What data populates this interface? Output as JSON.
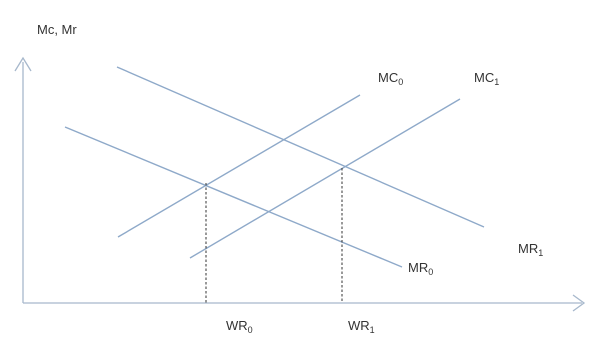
{
  "diagram": {
    "axes": {
      "y_label": "Mc, Mr"
    },
    "curves": [
      {
        "id": "mc0",
        "label": "MC",
        "subscript": "0"
      },
      {
        "id": "mc1",
        "label": "MC",
        "subscript": "1"
      },
      {
        "id": "mr0",
        "label": "MR",
        "subscript": "0"
      },
      {
        "id": "mr1",
        "label": "MR",
        "subscript": "1"
      }
    ],
    "equilibria": [
      {
        "id": "wr0",
        "label": "WR",
        "subscript": "0"
      },
      {
        "id": "wr1",
        "label": "WR",
        "subscript": "1"
      }
    ],
    "colors": {
      "curve": "#8ea9c9",
      "axis": "#a7b8cc",
      "text": "#333333",
      "guide": "#333333"
    }
  }
}
